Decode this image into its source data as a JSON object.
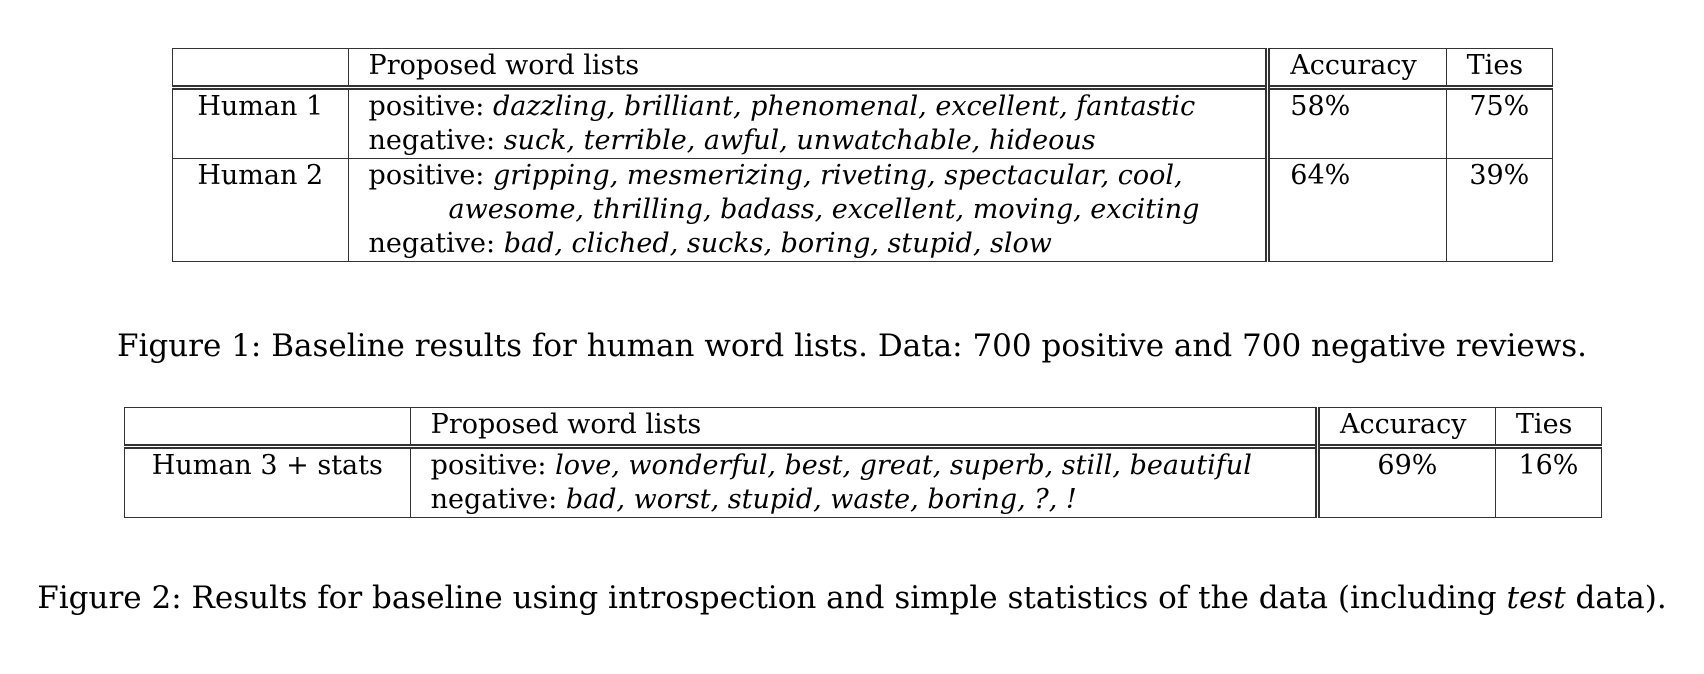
{
  "figure1": {
    "table": {
      "headers": [
        "",
        "Proposed word lists",
        "Accuracy",
        "Ties"
      ],
      "rows": [
        {
          "label": "Human 1",
          "positive_prefix": "positive:",
          "positive_words": "dazzling, brilliant, phenomenal, excellent, fantastic",
          "positive_words_cont": "",
          "negative_prefix": "negative:",
          "negative_words": "suck, terrible, awful, unwatchable, hideous",
          "accuracy": "58%",
          "ties": "75%"
        },
        {
          "label": "Human 2",
          "positive_prefix": "positive:",
          "positive_words": "gripping, mesmerizing, riveting, spectacular, cool,",
          "positive_words_cont": "awesome, thrilling, badass, excellent, moving, exciting",
          "negative_prefix": "negative:",
          "negative_words": "bad, cliched, sucks, boring, stupid, slow",
          "accuracy": "64%",
          "ties": "39%"
        }
      ]
    },
    "caption": "Figure 1: Baseline results for human word lists. Data: 700 positive and 700 negative reviews."
  },
  "figure2": {
    "table": {
      "headers": [
        "",
        "Proposed word lists",
        "Accuracy",
        "Ties"
      ],
      "rows": [
        {
          "label": "Human 3 + stats",
          "positive_prefix": "positive:",
          "positive_words": "love, wonderful, best, great, superb, still, beautiful",
          "negative_prefix": "negative:",
          "negative_words": "bad, worst, stupid, waste, boring, ?, !",
          "accuracy": "69%",
          "ties": "16%"
        }
      ]
    },
    "caption_before": "Figure 2: Results for baseline using introspection and simple statistics of the data (including ",
    "caption_em": "test",
    "caption_after": " data)."
  }
}
